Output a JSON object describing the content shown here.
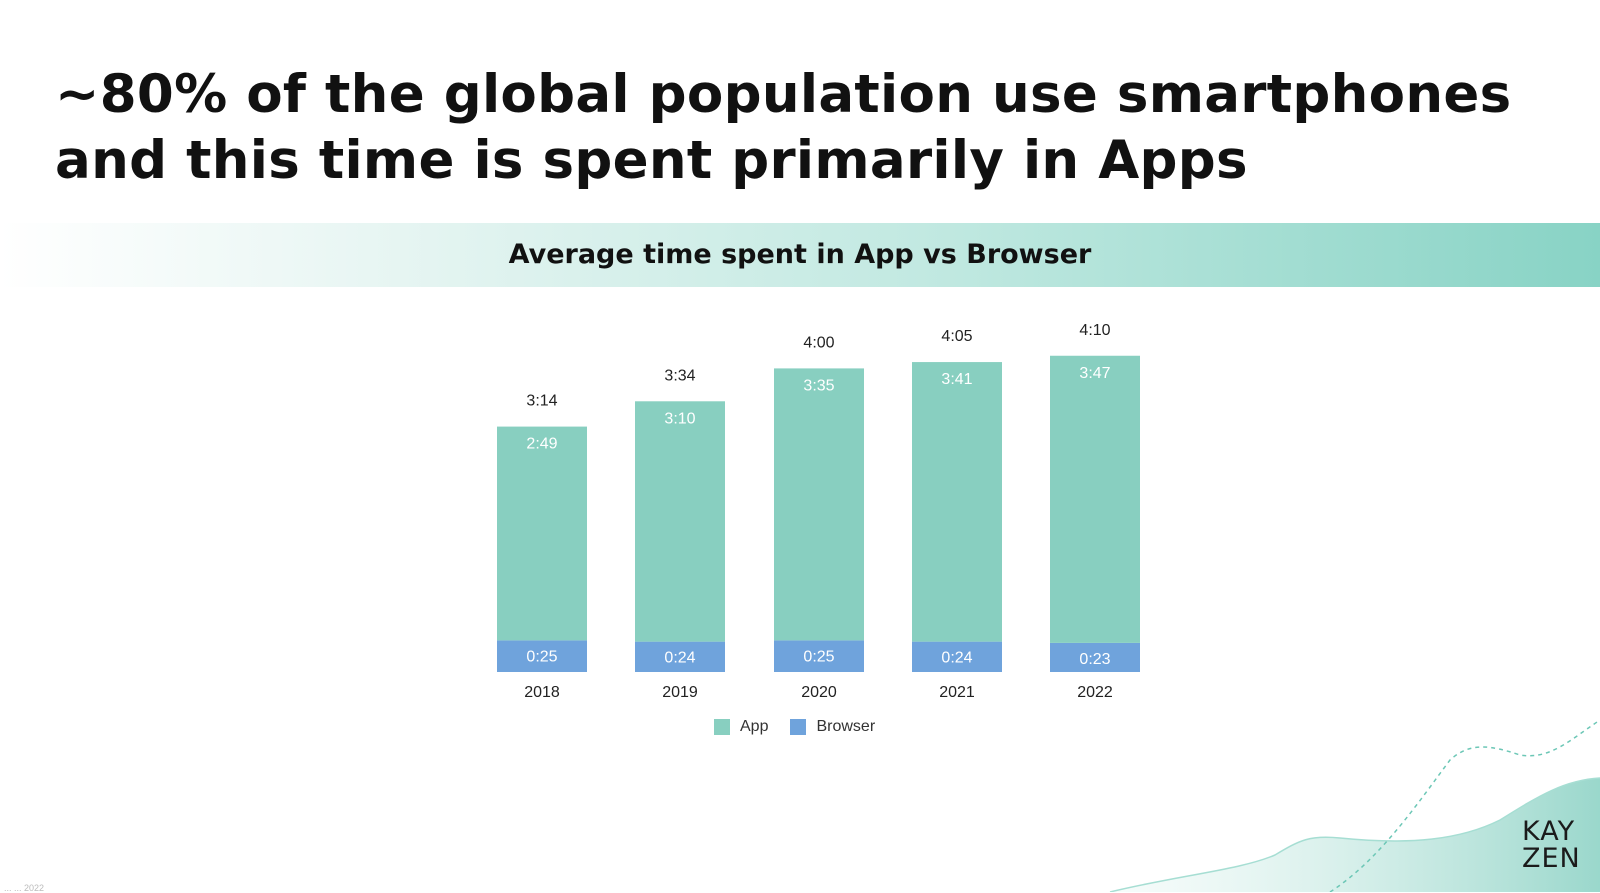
{
  "slide": {
    "headline_line1": "~80% of the global population use smartphones",
    "headline_line2": "and this time is spent primarily in Apps",
    "band_title": "Average time spent in App vs Browser",
    "logo_line1": "KAY",
    "logo_line2": "ZEN",
    "footer": "... ... 2022"
  },
  "colors": {
    "app": "#88cfc0",
    "browser": "#6fa3dc",
    "text": "#111111",
    "inner_label": "#ffffff"
  },
  "chart_data": {
    "type": "bar",
    "stacked": true,
    "categories": [
      "2018",
      "2019",
      "2020",
      "2021",
      "2022"
    ],
    "series": [
      {
        "name": "App",
        "values_minutes": [
          169,
          190,
          215,
          221,
          227
        ],
        "labels": [
          "2:49",
          "3:10",
          "3:35",
          "3:41",
          "3:47"
        ]
      },
      {
        "name": "Browser",
        "values_minutes": [
          25,
          24,
          25,
          24,
          23
        ],
        "labels": [
          "0:25",
          "0:24",
          "0:25",
          "0:24",
          "0:23"
        ]
      }
    ],
    "totals_minutes": [
      194,
      214,
      240,
      245,
      250
    ],
    "total_labels": [
      "3:14",
      "3:34",
      "4:00",
      "4:05",
      "4:10"
    ],
    "legend": {
      "position": "bottom",
      "entries": [
        "App",
        "Browser"
      ]
    },
    "grid": false
  }
}
